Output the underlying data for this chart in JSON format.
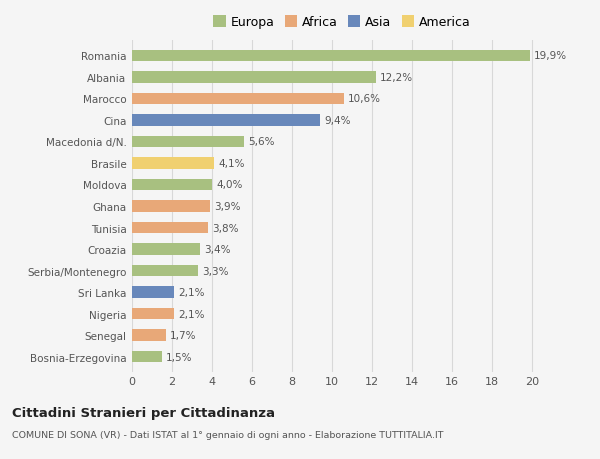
{
  "countries": [
    "Romania",
    "Albania",
    "Marocco",
    "Cina",
    "Macedonia d/N.",
    "Brasile",
    "Moldova",
    "Ghana",
    "Tunisia",
    "Croazia",
    "Serbia/Montenegro",
    "Sri Lanka",
    "Nigeria",
    "Senegal",
    "Bosnia-Erzegovina"
  ],
  "values": [
    19.9,
    12.2,
    10.6,
    9.4,
    5.6,
    4.1,
    4.0,
    3.9,
    3.8,
    3.4,
    3.3,
    2.1,
    2.1,
    1.7,
    1.5
  ],
  "labels": [
    "19,9%",
    "12,2%",
    "10,6%",
    "9,4%",
    "5,6%",
    "4,1%",
    "4,0%",
    "3,9%",
    "3,8%",
    "3,4%",
    "3,3%",
    "2,1%",
    "2,1%",
    "1,7%",
    "1,5%"
  ],
  "colors": [
    "#a8c080",
    "#a8c080",
    "#e8a878",
    "#6888bb",
    "#a8c080",
    "#f0d070",
    "#a8c080",
    "#e8a878",
    "#e8a878",
    "#a8c080",
    "#a8c080",
    "#6888bb",
    "#e8a878",
    "#e8a878",
    "#a8c080"
  ],
  "legend_labels": [
    "Europa",
    "Africa",
    "Asia",
    "America"
  ],
  "legend_colors": [
    "#a8c080",
    "#e8a878",
    "#6888bb",
    "#f0d070"
  ],
  "title": "Cittadini Stranieri per Cittadinanza",
  "subtitle": "COMUNE DI SONA (VR) - Dati ISTAT al 1° gennaio di ogni anno - Elaborazione TUTTITALIA.IT",
  "xlim": [
    0,
    21
  ],
  "xticks": [
    0,
    2,
    4,
    6,
    8,
    10,
    12,
    14,
    16,
    18,
    20
  ],
  "bg_color": "#f5f5f5",
  "grid_color": "#d8d8d8",
  "bar_height": 0.55
}
